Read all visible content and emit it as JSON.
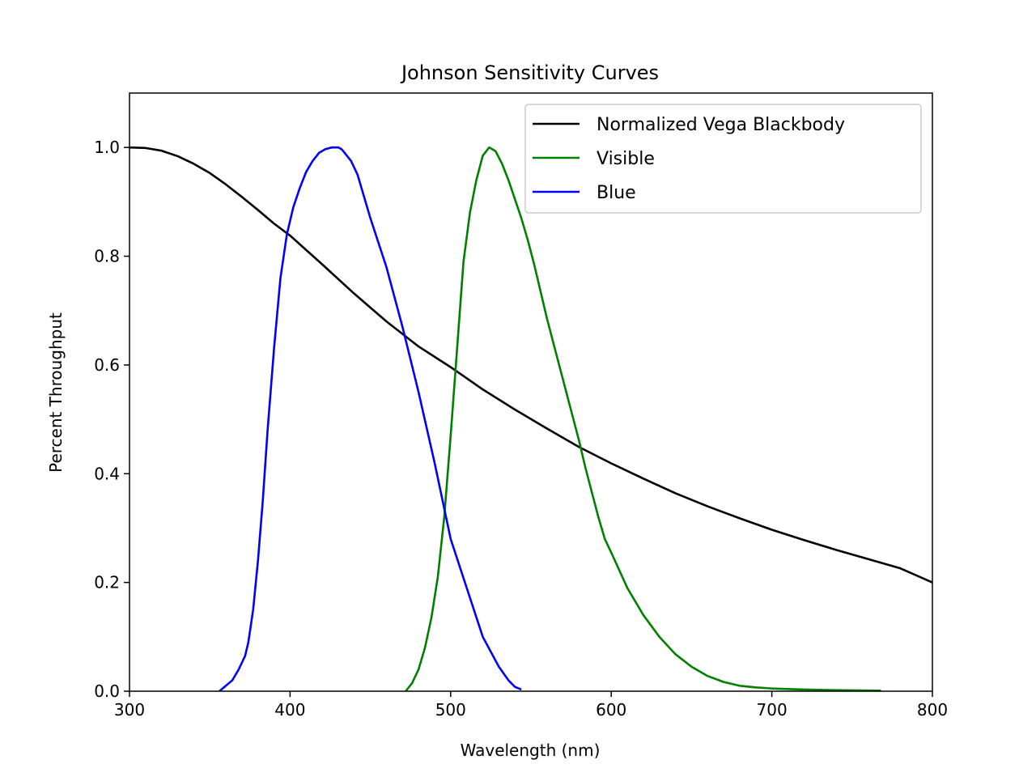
{
  "chart_data": {
    "type": "line",
    "title": "Johnson Sensitivity Curves",
    "xlabel": "Wavelength (nm)",
    "ylabel": "Percent Throughput",
    "xlim": [
      300,
      800
    ],
    "ylim": [
      0,
      1.1
    ],
    "xticks": [
      300,
      400,
      500,
      600,
      700,
      800
    ],
    "yticks": [
      0.0,
      0.2,
      0.4,
      0.6,
      0.8,
      1.0
    ],
    "xtick_labels": [
      "300",
      "400",
      "500",
      "600",
      "700",
      "800"
    ],
    "ytick_labels": [
      "0.0",
      "0.2",
      "0.4",
      "0.6",
      "0.8",
      "1.0"
    ],
    "grid": false,
    "legend_position": "top-right",
    "series": [
      {
        "name": "Normalized Vega Blackbody",
        "color": "#000000",
        "x": [
          300,
          310,
          320,
          330,
          340,
          350,
          360,
          370,
          380,
          390,
          400,
          420,
          440,
          460,
          480,
          500,
          520,
          540,
          560,
          580,
          600,
          620,
          640,
          660,
          680,
          700,
          720,
          740,
          760,
          780,
          800
        ],
        "y": [
          1.0,
          0.999,
          0.994,
          0.984,
          0.97,
          0.953,
          0.932,
          0.909,
          0.885,
          0.86,
          0.838,
          0.785,
          0.731,
          0.68,
          0.634,
          0.596,
          0.555,
          0.518,
          0.483,
          0.449,
          0.419,
          0.391,
          0.364,
          0.34,
          0.318,
          0.297,
          0.278,
          0.26,
          0.243,
          0.226,
          0.2
        ]
      },
      {
        "name": "Visible",
        "color": "#008000",
        "x": [
          472,
          476,
          480,
          484,
          488,
          492,
          496,
          500,
          504,
          508,
          512,
          516,
          520,
          524,
          528,
          532,
          536,
          540,
          544,
          548,
          552,
          556,
          560,
          564,
          568,
          572,
          576,
          580,
          584,
          588,
          592,
          596,
          600,
          610,
          620,
          630,
          640,
          650,
          660,
          670,
          680,
          690,
          700,
          720,
          740,
          768
        ],
        "y": [
          0.0,
          0.015,
          0.04,
          0.08,
          0.135,
          0.21,
          0.32,
          0.47,
          0.63,
          0.79,
          0.88,
          0.94,
          0.985,
          1.0,
          0.993,
          0.97,
          0.94,
          0.905,
          0.87,
          0.83,
          0.785,
          0.735,
          0.685,
          0.64,
          0.595,
          0.55,
          0.505,
          0.46,
          0.41,
          0.365,
          0.32,
          0.28,
          0.255,
          0.19,
          0.14,
          0.1,
          0.068,
          0.045,
          0.028,
          0.017,
          0.01,
          0.007,
          0.005,
          0.003,
          0.002,
          0.001
        ]
      },
      {
        "name": "Blue",
        "color": "#0000ff",
        "x": [
          356,
          360,
          364,
          368,
          372,
          374,
          377,
          380,
          383,
          386,
          390,
          394,
          398,
          402,
          406,
          410,
          414,
          418,
          422,
          426,
          430,
          432,
          434,
          438,
          442,
          446,
          450,
          460,
          470,
          480,
          490,
          500,
          510,
          520,
          530,
          536,
          540,
          544
        ],
        "y": [
          0.0,
          0.01,
          0.02,
          0.04,
          0.065,
          0.09,
          0.15,
          0.24,
          0.35,
          0.48,
          0.63,
          0.76,
          0.84,
          0.89,
          0.925,
          0.955,
          0.975,
          0.99,
          0.997,
          1.0,
          1.0,
          0.997,
          0.99,
          0.975,
          0.95,
          0.91,
          0.87,
          0.78,
          0.67,
          0.55,
          0.42,
          0.28,
          0.19,
          0.1,
          0.045,
          0.02,
          0.008,
          0.003
        ]
      }
    ]
  }
}
